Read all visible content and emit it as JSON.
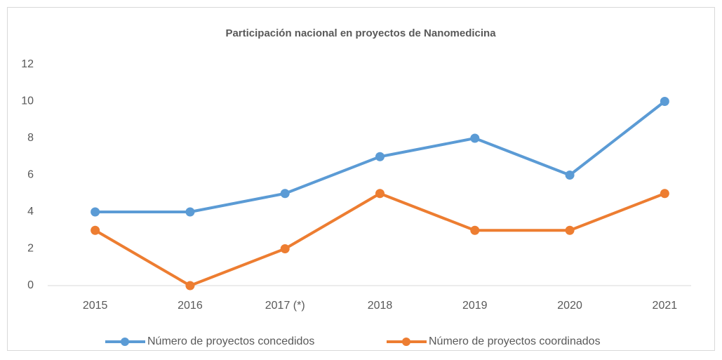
{
  "chart_data": {
    "type": "line",
    "title": "Participación nacional en proyectos de  Nanomedicina",
    "categories": [
      "2015",
      "2016",
      "2017 (*)",
      "2018",
      "2019",
      "2020",
      "2021"
    ],
    "series": [
      {
        "name": "Número de proyectos concedidos",
        "color": "#5b9bd5",
        "values": [
          4,
          4,
          5,
          7,
          8,
          6,
          10
        ]
      },
      {
        "name": "Número de proyectos coordinados",
        "color": "#ed7d31",
        "values": [
          3,
          0,
          2,
          5,
          3,
          3,
          5
        ]
      }
    ],
    "ylim": [
      0,
      12
    ],
    "yticks": [
      0,
      2,
      4,
      6,
      8,
      10,
      12
    ],
    "grid": false,
    "legend": "bottom"
  }
}
